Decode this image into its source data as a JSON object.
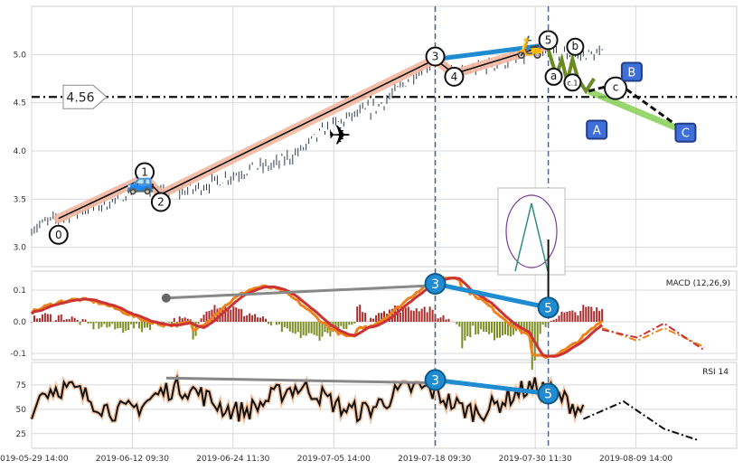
{
  "chart_data": [
    {
      "type": "line",
      "panel": "price",
      "x_axis": {
        "tick_labels": [
          "2019-05-29 14:00",
          "2019-06-12 09:30",
          "2019-06-24 11:30",
          "2019-07-05 14:00",
          "2019-07-18 09:30",
          "2019-07-30 11:30",
          "2019-08-09 14:00"
        ]
      },
      "ylim": [
        2.8,
        5.5
      ],
      "yticks": [
        "3.0",
        "3.5",
        "4.0",
        "4.5",
        "5.0"
      ],
      "grid": true,
      "price_series": {
        "x_range": [
          0,
          212
        ],
        "anchors": [
          [
            0,
            3.2
          ],
          [
            10,
            3.3
          ],
          [
            20,
            3.4
          ],
          [
            28,
            3.45
          ],
          [
            38,
            3.6
          ],
          [
            42,
            3.7
          ],
          [
            45,
            3.58
          ],
          [
            48,
            3.55
          ],
          [
            60,
            3.6
          ],
          [
            75,
            3.75
          ],
          [
            82,
            3.82
          ],
          [
            90,
            3.85
          ],
          [
            100,
            4.0
          ],
          [
            108,
            4.2
          ],
          [
            118,
            4.35
          ],
          [
            128,
            4.45
          ],
          [
            135,
            4.6
          ],
          [
            142,
            4.8
          ],
          [
            150,
            4.95
          ],
          [
            155,
            4.85
          ],
          [
            158,
            4.78
          ],
          [
            165,
            4.85
          ],
          [
            172,
            4.9
          ],
          [
            180,
            4.95
          ],
          [
            188,
            5.02
          ],
          [
            192,
            5.0
          ]
        ]
      },
      "horizontal_level": {
        "value": 4.56,
        "label": "4.56"
      },
      "wave_path": {
        "points": [
          [
            10,
            3.3
          ],
          [
            42,
            3.72
          ],
          [
            48,
            3.55
          ],
          [
            150,
            4.95
          ],
          [
            157,
            4.8
          ],
          [
            192,
            5.1
          ]
        ],
        "labels": [
          {
            "text": "0",
            "x": 10,
            "y": 3.13
          },
          {
            "text": "1",
            "x": 42,
            "y": 3.78
          },
          {
            "text": "2",
            "x": 48,
            "y": 3.47
          },
          {
            "text": "3",
            "x": 150,
            "y": 4.98
          },
          {
            "text": "4",
            "x": 157,
            "y": 4.77
          },
          {
            "text": "5",
            "x": 192,
            "y": 5.15
          }
        ]
      },
      "projection": {
        "labels": [
          {
            "text": "a",
            "x": 194,
            "y": 4.77
          },
          {
            "text": "b",
            "x": 202,
            "y": 5.08
          },
          {
            "text": "c.1",
            "x": 201,
            "y": 4.71
          },
          {
            "text": "c",
            "x": 217,
            "y": 4.65
          }
        ],
        "boxes": [
          {
            "text": "A",
            "x": 210,
            "y": 4.22
          },
          {
            "text": "B",
            "x": 223,
            "y": 4.82
          },
          {
            "text": "C",
            "x": 243,
            "y": 4.19
          }
        ]
      },
      "vlines_x": [
        150,
        192
      ]
    },
    {
      "type": "line",
      "panel": "macd",
      "ylim": [
        -0.12,
        0.16
      ],
      "yticks": [
        "-0.1",
        "0.0",
        "0.1"
      ],
      "legend": "MACD (12,26,9)",
      "divergence": {
        "points": [
          [
            50,
            0.075
          ],
          [
            150,
            0.115
          ]
        ],
        "wave_points": [
          {
            "text": "3",
            "x": 150,
            "y": 0.12
          },
          {
            "text": "5",
            "x": 192,
            "y": 0.045
          }
        ]
      }
    },
    {
      "type": "line",
      "panel": "rsi",
      "ylim": [
        10,
        98
      ],
      "yticks": [
        "25",
        "50",
        "75"
      ],
      "legend": "RSI 14",
      "divergence": {
        "points": [
          [
            50,
            82
          ],
          [
            150,
            77
          ]
        ],
        "wave_points": [
          {
            "text": "3",
            "x": 150,
            "y": 80
          },
          {
            "text": "5",
            "x": 192,
            "y": 66
          }
        ]
      }
    }
  ],
  "colors": {
    "candle": "#2f3b4c",
    "wave_fill": "#f3b7a0",
    "macd_line": "#f0821a",
    "signal_line": "#cc3333",
    "hist_pos": "#a82c2c",
    "hist_neg": "#7a8c22",
    "blue_trend": "#1f8bd0",
    "projection_green": "#7fce4c",
    "box_blue": "#3f6fd8",
    "vline": "#4d6a8c",
    "divergence_grey": "#888888"
  },
  "icons": [
    "car-icon",
    "airplane-icon",
    "scooter-icon",
    "ferris-wheel-icon"
  ]
}
